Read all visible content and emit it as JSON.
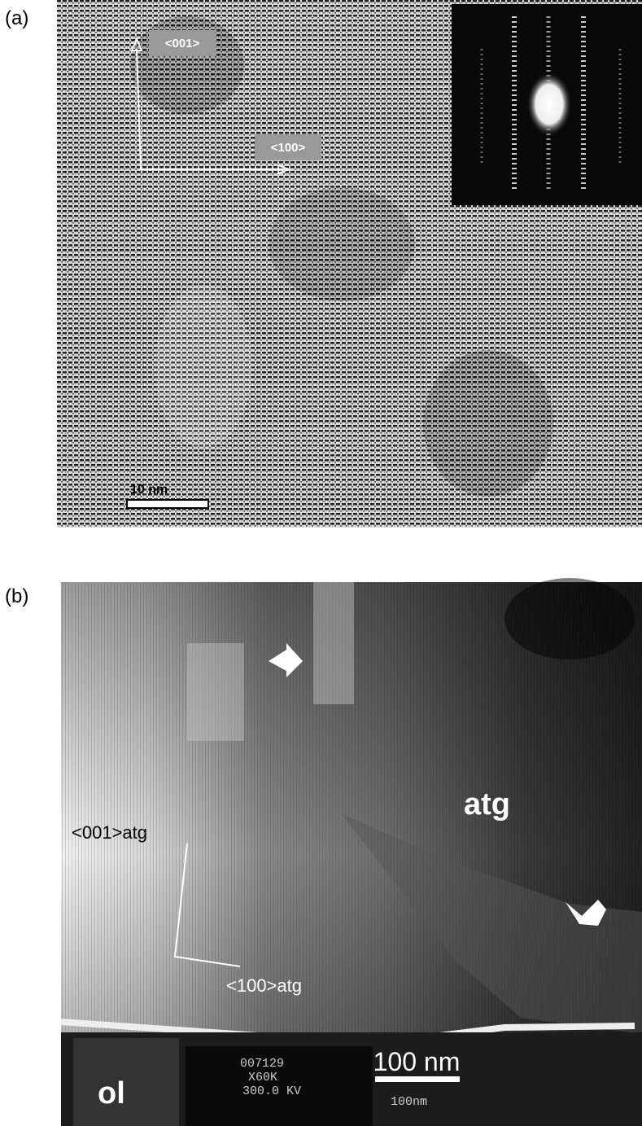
{
  "panel_a": {
    "label": "(a)",
    "axis_001": "<001>",
    "axis_100": "<100>",
    "scale_bar": "10 nm"
  },
  "panel_b": {
    "label": "(b)",
    "axis_001": "<001>atg",
    "axis_100": "<100>atg",
    "region_atg": "atg",
    "region_ol": "ol",
    "scale_bar": "100 nm",
    "microscope_readout": {
      "frame": "007129",
      "magnification": "X60K",
      "voltage": "300.0 KV",
      "scale": "100nm"
    }
  }
}
